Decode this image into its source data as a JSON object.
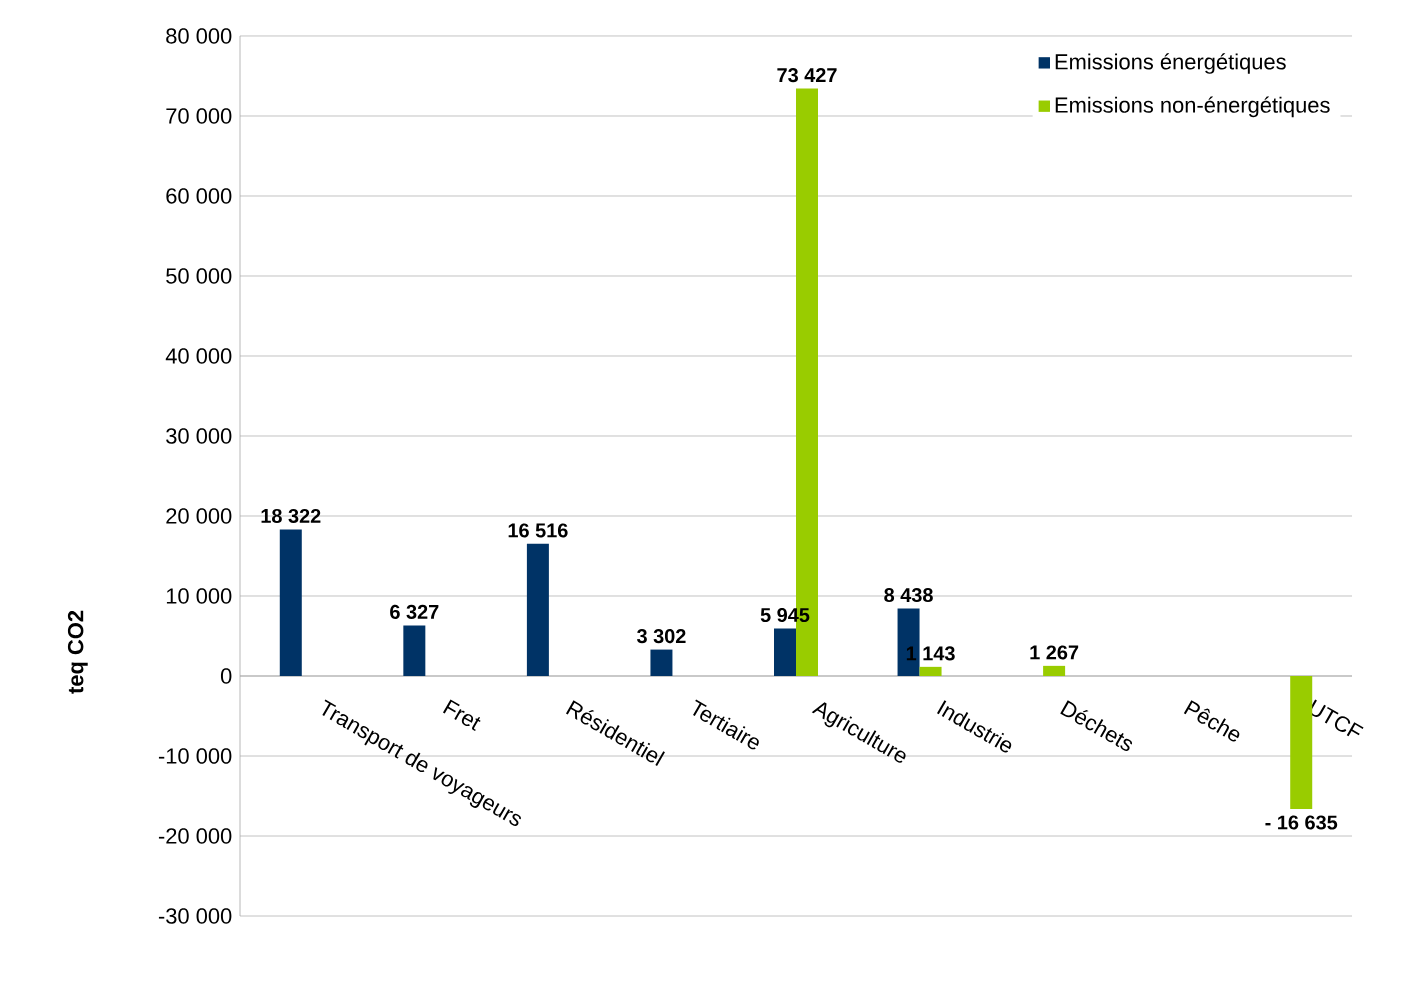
{
  "chart_data": {
    "type": "bar",
    "ylabel": "teq CO2",
    "categories": [
      "Transport de voyageurs",
      "Fret",
      "Résidentiel",
      "Tertiaire",
      "Agriculture",
      "Industrie",
      "Déchets",
      "Pêche",
      "UTCF"
    ],
    "series": [
      {
        "name": "Emissions énergétiques",
        "color": "#003366",
        "values": [
          18322,
          6327,
          16516,
          3302,
          5945,
          8438,
          null,
          null,
          null
        ],
        "value_labels": [
          "18 322",
          "6 327",
          "16 516",
          "3 302",
          "5 945",
          "8 438",
          null,
          null,
          null
        ]
      },
      {
        "name": "Emissions non-énergétiques",
        "color": "#99cc00",
        "values": [
          null,
          null,
          null,
          null,
          73427,
          1143,
          1267,
          null,
          -16635
        ],
        "value_labels": [
          null,
          null,
          null,
          null,
          "73 427",
          "1 143",
          "1 267",
          null,
          "- 16 635"
        ]
      }
    ],
    "ylim": [
      -30000,
      80000
    ],
    "yticks": [
      {
        "value": -30000,
        "label": "-30 000"
      },
      {
        "value": -20000,
        "label": "-20 000"
      },
      {
        "value": -10000,
        "label": "-10 000"
      },
      0,
      {
        "value": 10000,
        "label": "10 000"
      },
      {
        "value": 20000,
        "label": "20 000"
      },
      {
        "value": 30000,
        "label": "30 000"
      },
      {
        "value": 40000,
        "label": "40 000"
      },
      {
        "value": 50000,
        "label": "50 000"
      },
      {
        "value": 60000,
        "label": "60 000"
      },
      {
        "value": 70000,
        "label": "70 000"
      },
      {
        "value": 80000,
        "label": "80 000"
      }
    ],
    "grid": "y",
    "legend": "top right"
  }
}
